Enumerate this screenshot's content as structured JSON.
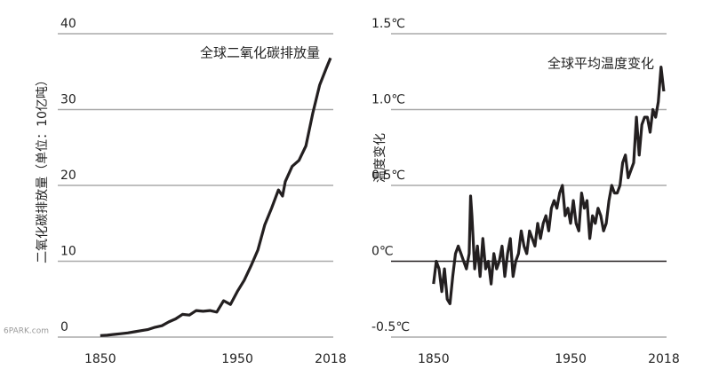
{
  "chart_data": [
    {
      "type": "line",
      "title": "全球二氧化碳排放量",
      "y_label": "二氧化碳排放量（单位：10亿吨）",
      "x": [
        1850,
        1855,
        1860,
        1865,
        1870,
        1875,
        1880,
        1885,
        1890,
        1895,
        1900,
        1905,
        1910,
        1915,
        1920,
        1925,
        1930,
        1935,
        1940,
        1945,
        1950,
        1955,
        1960,
        1965,
        1970,
        1975,
        1980,
        1983,
        1985,
        1990,
        1995,
        2000,
        2005,
        2010,
        2015,
        2018
      ],
      "values": [
        0.2,
        0.25,
        0.35,
        0.45,
        0.55,
        0.7,
        0.85,
        1.0,
        1.3,
        1.5,
        2.0,
        2.4,
        3.0,
        2.9,
        3.5,
        3.4,
        3.5,
        3.3,
        4.8,
        4.3,
        6.0,
        7.5,
        9.4,
        11.5,
        14.8,
        17.0,
        19.4,
        18.6,
        20.5,
        22.5,
        23.3,
        25.2,
        29.5,
        33.2,
        35.5,
        36.8
      ],
      "color": "#231f20",
      "xlim": [
        1819,
        2020
      ],
      "xticks": [
        1850,
        1950,
        2018
      ],
      "ylim": [
        0,
        40
      ],
      "yticks": [
        0,
        10,
        20,
        30,
        40
      ],
      "grid": true
    },
    {
      "type": "line",
      "title": "全球平均温度变化",
      "y_label": "温度变化",
      "x": [
        1850,
        1852,
        1854,
        1856,
        1858,
        1860,
        1862,
        1864,
        1866,
        1868,
        1870,
        1872,
        1874,
        1876,
        1877,
        1878,
        1880,
        1882,
        1884,
        1886,
        1888,
        1890,
        1892,
        1894,
        1896,
        1898,
        1900,
        1902,
        1904,
        1906,
        1908,
        1910,
        1912,
        1914,
        1916,
        1918,
        1920,
        1922,
        1924,
        1926,
        1928,
        1930,
        1932,
        1934,
        1936,
        1938,
        1940,
        1942,
        1944,
        1946,
        1948,
        1950,
        1952,
        1954,
        1956,
        1958,
        1960,
        1962,
        1964,
        1966,
        1968,
        1970,
        1972,
        1974,
        1976,
        1978,
        1980,
        1982,
        1984,
        1986,
        1988,
        1990,
        1992,
        1994,
        1996,
        1998,
        2000,
        2002,
        2004,
        2006,
        2008,
        2010,
        2012,
        2014,
        2016,
        2018
      ],
      "values": [
        -0.15,
        0.0,
        -0.05,
        -0.2,
        -0.05,
        -0.25,
        -0.28,
        -0.1,
        0.05,
        0.1,
        0.05,
        0.0,
        -0.05,
        0.05,
        0.43,
        0.3,
        -0.05,
        0.1,
        -0.1,
        0.15,
        -0.05,
        0.0,
        -0.15,
        0.05,
        -0.05,
        0.0,
        0.1,
        -0.1,
        0.05,
        0.15,
        -0.1,
        0.0,
        0.05,
        0.2,
        0.1,
        0.05,
        0.2,
        0.15,
        0.1,
        0.25,
        0.15,
        0.25,
        0.3,
        0.2,
        0.35,
        0.4,
        0.35,
        0.45,
        0.5,
        0.3,
        0.35,
        0.25,
        0.4,
        0.25,
        0.2,
        0.45,
        0.35,
        0.4,
        0.15,
        0.3,
        0.25,
        0.35,
        0.3,
        0.2,
        0.25,
        0.4,
        0.5,
        0.45,
        0.45,
        0.5,
        0.65,
        0.7,
        0.55,
        0.6,
        0.65,
        0.95,
        0.7,
        0.9,
        0.95,
        0.95,
        0.85,
        1.0,
        0.95,
        1.05,
        1.28,
        1.12
      ],
      "color": "#231f20",
      "xlim": [
        1819,
        2020
      ],
      "xticks": [
        1850,
        1950,
        2018
      ],
      "ylim": [
        -0.5,
        1.5
      ],
      "yticks": [
        {
          "value": -0.5,
          "label": "-0.5℃"
        },
        {
          "value": 0,
          "label": "0℃"
        },
        {
          "value": 0.5,
          "label": "0.5℃"
        },
        {
          "value": 1.0,
          "label": "1.0℃"
        },
        {
          "value": 1.5,
          "label": "1.5℃"
        }
      ],
      "grid": true
    }
  ],
  "watermark": "6PARK.com"
}
